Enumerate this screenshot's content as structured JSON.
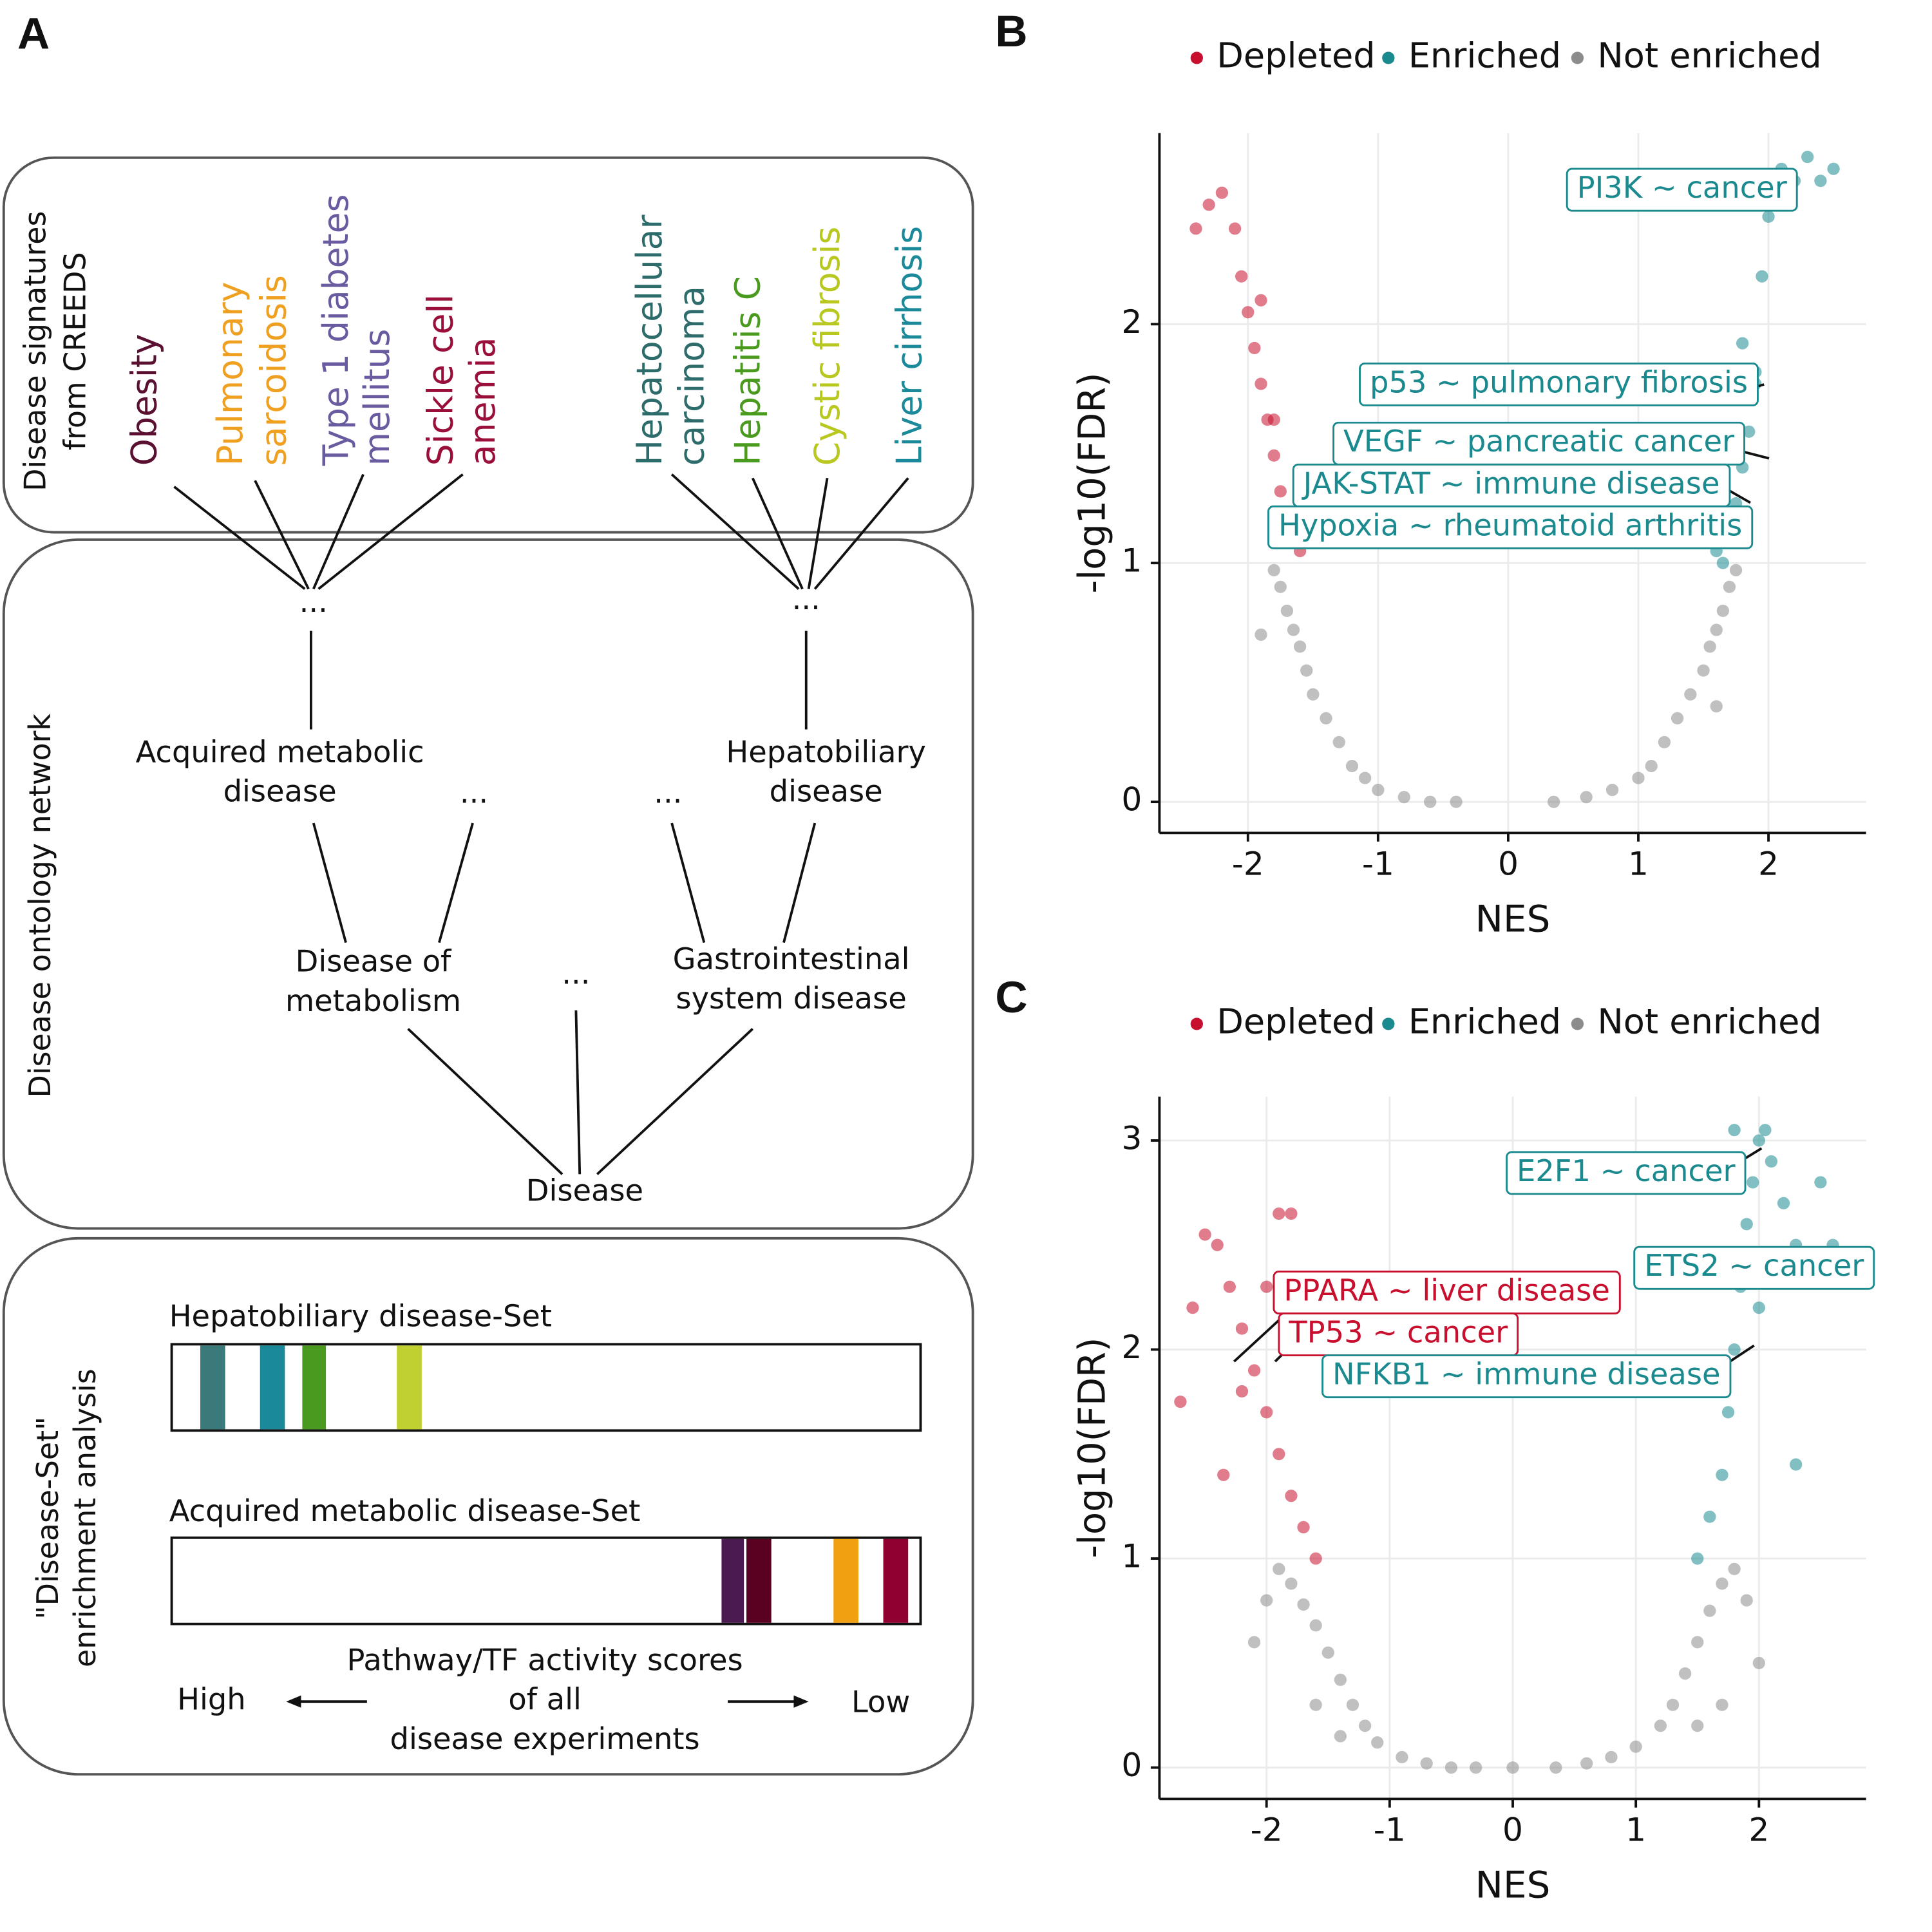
{
  "panel_a": {
    "label": "A",
    "sections": [
      [
        "Disease signatures",
        "from CREEDS"
      ],
      [
        "Disease ontology network"
      ],
      [
        "\"Disease-Set\"",
        "enrichment analysis"
      ]
    ],
    "signatures": [
      {
        "lines": [
          "Obesity"
        ],
        "color": "#5a1030"
      },
      {
        "lines": [
          "Pulmonary",
          "sarcoidosis"
        ],
        "color": "#f0a020"
      },
      {
        "lines": [
          "Type 1 diabetes",
          "mellitus"
        ],
        "color": "#6a5aa0"
      },
      {
        "lines": [
          "Sickle cell",
          "anemia"
        ],
        "color": "#9a0f3a"
      },
      {
        "lines": [
          "Hepatocellular",
          "carcinoma"
        ],
        "color": "#2e6b6b"
      },
      {
        "lines": [
          "Hepatitis C"
        ],
        "color": "#4a9a20"
      },
      {
        "lines": [
          "Cystic fibrosis"
        ],
        "color": "#b8c820"
      },
      {
        "lines": [
          "Liver cirrhosis"
        ],
        "color": "#1a8a9a"
      }
    ],
    "ontology": {
      "level1": [
        [
          "Acquired metabolic",
          "disease"
        ],
        [
          "Hepatobiliary",
          "disease"
        ]
      ],
      "level2": [
        [
          "Disease of",
          "metabolism"
        ],
        [
          "Gastrointestinal",
          "system disease"
        ]
      ],
      "root": "Disease",
      "ellipsis": "..."
    },
    "sets": [
      "Hepatobiliary disease-Set",
      "Acquired metabolic disease-Set"
    ],
    "scale": {
      "caption": [
        "Pathway/TF activity scores",
        "of all",
        "disease experiments"
      ],
      "high": "High",
      "low": "Low"
    }
  },
  "chart_data": [
    {
      "type": "scatter",
      "panel": "B",
      "x_label": "NES",
      "y_label": "-log10(FDR)",
      "xlim": [
        -2.68,
        2.75
      ],
      "ylim": [
        -0.13,
        2.8
      ],
      "xticks": [
        -2,
        -1,
        0,
        1,
        2
      ],
      "yticks": [
        0,
        1,
        2
      ],
      "grid": true,
      "series": [
        {
          "name": "Depleted",
          "color": "#c8102e",
          "x": [
            -1.6,
            -1.65,
            -1.7,
            -1.75,
            -1.8,
            -1.85,
            -1.9,
            -1.95,
            -2.0,
            -2.05,
            -2.1,
            -2.2,
            -2.3,
            -2.4,
            -1.8,
            -1.9
          ],
          "values": [
            1.05,
            1.1,
            1.2,
            1.3,
            1.45,
            1.6,
            1.75,
            1.9,
            2.05,
            2.2,
            2.4,
            2.55,
            2.5,
            2.4,
            1.6,
            2.1
          ]
        },
        {
          "name": "Enriched",
          "color": "#1a8a8f",
          "x": [
            1.6,
            1.65,
            1.7,
            1.75,
            1.8,
            1.85,
            1.9,
            1.95,
            2.0,
            2.1,
            2.2,
            2.3,
            2.4,
            2.5,
            1.8,
            1.9
          ],
          "values": [
            1.05,
            1.0,
            1.1,
            1.25,
            1.4,
            1.55,
            1.8,
            2.2,
            2.45,
            2.65,
            2.6,
            2.7,
            2.6,
            2.65,
            1.92,
            1.75
          ]
        },
        {
          "name": "Not enriched",
          "color": "#8c8c8c",
          "x": [
            -0.4,
            -0.6,
            -0.8,
            -1.0,
            -1.1,
            -1.2,
            -1.3,
            -1.4,
            -1.5,
            -1.55,
            -1.6,
            -1.65,
            -1.7,
            -1.75,
            -1.8,
            -1.9,
            0.35,
            0.6,
            0.8,
            1.0,
            1.1,
            1.2,
            1.3,
            1.4,
            1.5,
            1.55,
            1.6,
            1.65,
            1.7,
            1.75,
            1.6
          ],
          "values": [
            0,
            0,
            0.02,
            0.05,
            0.1,
            0.15,
            0.25,
            0.35,
            0.45,
            0.55,
            0.65,
            0.72,
            0.8,
            0.9,
            0.97,
            0.7,
            0,
            0.02,
            0.05,
            0.1,
            0.15,
            0.25,
            0.35,
            0.45,
            0.55,
            0.65,
            0.72,
            0.8,
            0.9,
            0.97,
            0.4
          ]
        }
      ],
      "annotations": [
        {
          "text": "PI3K ~ cancer",
          "color": "#1a8a8f"
        },
        {
          "text": "p53 ~ pulmonary fibrosis",
          "color": "#1a8a8f"
        },
        {
          "text": "VEGF ~ pancreatic cancer",
          "color": "#1a8a8f"
        },
        {
          "text": "JAK-STAT ~ immune disease",
          "color": "#1a8a8f"
        },
        {
          "text": "Hypoxia ~ rheumatoid arthritis",
          "color": "#1a8a8f"
        }
      ]
    },
    {
      "type": "scatter",
      "panel": "C",
      "x_label": "NES",
      "y_label": "-log10(FDR)",
      "xlim": [
        -2.87,
        2.87
      ],
      "ylim": [
        -0.15,
        3.21
      ],
      "xticks": [
        -2,
        -1,
        0,
        1,
        2
      ],
      "yticks": [
        0,
        1,
        2,
        3
      ],
      "grid": true,
      "series": [
        {
          "name": "Depleted",
          "color": "#c8102e",
          "x": [
            -1.6,
            -1.7,
            -1.8,
            -1.9,
            -2.0,
            -2.1,
            -2.2,
            -2.3,
            -2.4,
            -2.5,
            -2.6,
            -2.7,
            -1.9,
            -2.0,
            -2.2,
            -1.8,
            -2.35
          ],
          "values": [
            1.0,
            1.15,
            1.3,
            1.5,
            1.7,
            1.9,
            2.1,
            2.3,
            2.5,
            2.55,
            2.2,
            1.75,
            2.65,
            2.3,
            1.8,
            2.65,
            1.4
          ]
        },
        {
          "name": "Enriched",
          "color": "#1a8a8f",
          "x": [
            1.5,
            1.6,
            1.7,
            1.75,
            1.8,
            1.85,
            1.9,
            1.95,
            2.0,
            2.05,
            2.1,
            2.2,
            2.3,
            2.5,
            2.6,
            2.3,
            1.8,
            2.0
          ],
          "values": [
            1.0,
            1.2,
            1.4,
            1.7,
            2.0,
            2.3,
            2.6,
            2.8,
            3.0,
            3.05,
            2.9,
            2.7,
            2.5,
            2.8,
            2.5,
            1.45,
            3.05,
            2.2
          ]
        },
        {
          "name": "Not enriched",
          "color": "#8c8c8c",
          "x": [
            -0.3,
            -0.5,
            -0.7,
            -0.9,
            -1.1,
            -1.2,
            -1.3,
            -1.4,
            -1.5,
            -1.6,
            -1.7,
            -1.8,
            -1.9,
            -2.0,
            -2.1,
            -1.6,
            -1.4,
            0,
            0.35,
            0.6,
            0.8,
            1.0,
            1.2,
            1.3,
            1.4,
            1.5,
            1.6,
            1.7,
            1.8,
            1.9,
            2.0,
            1.7,
            1.5
          ],
          "values": [
            0,
            0,
            0.02,
            0.05,
            0.12,
            0.2,
            0.3,
            0.42,
            0.55,
            0.68,
            0.78,
            0.88,
            0.95,
            0.8,
            0.6,
            0.3,
            0.15,
            0,
            0,
            0.02,
            0.05,
            0.1,
            0.2,
            0.3,
            0.45,
            0.6,
            0.75,
            0.88,
            0.95,
            0.8,
            0.5,
            0.3,
            0.2
          ]
        }
      ],
      "annotations": [
        {
          "text": "E2F1 ~ cancer",
          "color": "#1a8a8f"
        },
        {
          "text": "ETS2 ~ cancer",
          "color": "#1a8a8f"
        },
        {
          "text": "PPARA ~ liver disease",
          "color": "#c8102e"
        },
        {
          "text": "TP53 ~ cancer",
          "color": "#c8102e"
        },
        {
          "text": "NFKB1 ~ immune disease",
          "color": "#1a8a8f"
        }
      ]
    }
  ]
}
